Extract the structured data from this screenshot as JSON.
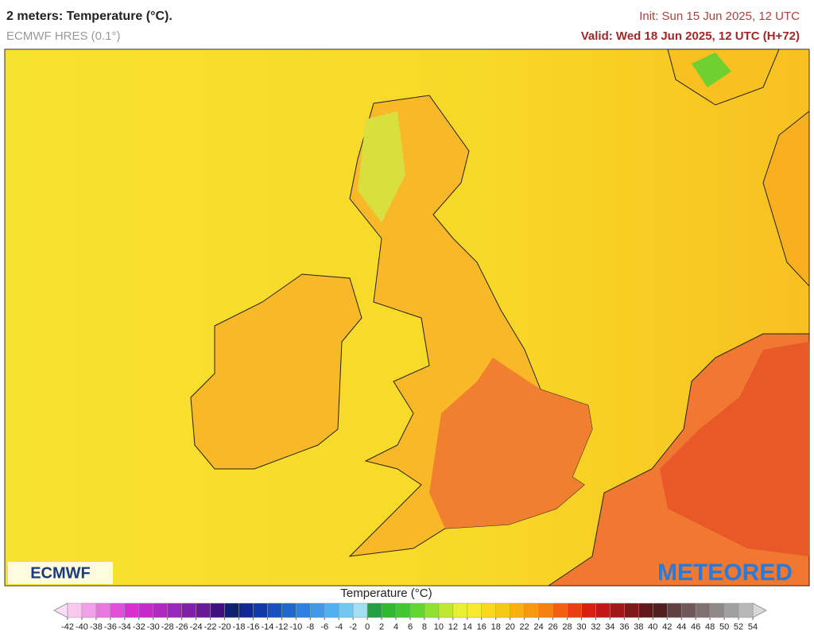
{
  "header": {
    "title": "2 meters: Temperature (°C).",
    "subtitle": "ECMWF HRES (0.1°)",
    "init": "Init: Sun 15 Jun 2025, 12 UTC",
    "valid": "Valid: Wed 18 Jun 2025, 12 UTC (H+72)"
  },
  "logos": {
    "left": "ECMWF",
    "right": "METEORED"
  },
  "legend": {
    "title": "Temperature (°C)",
    "ticks": [
      -42,
      -40,
      -38,
      -36,
      -34,
      -32,
      -30,
      -28,
      -26,
      -24,
      -22,
      -20,
      -18,
      -16,
      -14,
      -12,
      -10,
      -8,
      -6,
      -4,
      -2,
      0,
      2,
      4,
      6,
      8,
      10,
      12,
      14,
      16,
      18,
      20,
      22,
      24,
      26,
      28,
      30,
      32,
      34,
      36,
      38,
      40,
      42,
      44,
      46,
      48,
      50,
      52,
      54
    ],
    "colors": [
      "#f8c8f0",
      "#f0a0e8",
      "#e878e0",
      "#e050d8",
      "#d830d0",
      "#c828c8",
      "#b028c0",
      "#9828b8",
      "#8020a8",
      "#681898",
      "#401080",
      "#102070",
      "#102890",
      "#1038a8",
      "#1850c0",
      "#2068d0",
      "#3080e0",
      "#4098e8",
      "#50b0f0",
      "#70c8f0",
      "#a0e0f0",
      "#20a040",
      "#30b830",
      "#40c830",
      "#60d830",
      "#90e030",
      "#c0e830",
      "#e8f030",
      "#f8e830",
      "#f8d820",
      "#f8c818",
      "#f8b010",
      "#f89810",
      "#f88010",
      "#f06010",
      "#e84010",
      "#d82010",
      "#c01818",
      "#a01818",
      "#801818",
      "#601818",
      "#502020",
      "#604040",
      "#705858",
      "#807070",
      "#908888",
      "#a0a0a0",
      "#b8b8b8"
    ],
    "low_color": "#fce0f8",
    "high_color": "#d8d8d8"
  }
}
